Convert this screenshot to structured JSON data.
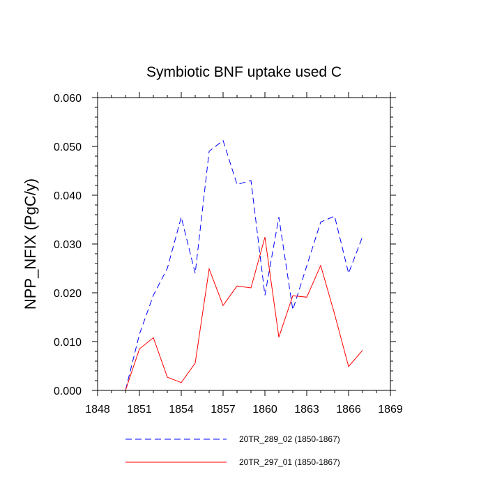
{
  "chart_data": {
    "type": "line",
    "title": "Symbiotic BNF uptake used C",
    "xlabel": "",
    "ylabel": "NPP_NFIX  (PgC/y)",
    "xlim": [
      1848,
      1869
    ],
    "ylim": [
      0.0,
      0.06
    ],
    "xticks": [
      1848,
      1851,
      1854,
      1857,
      1860,
      1863,
      1866,
      1869
    ],
    "xtick_labels": [
      "1848",
      "1851",
      "1854",
      "1857",
      "1860",
      "1863",
      "1866",
      "1869"
    ],
    "yticks": [
      0.0,
      0.01,
      0.02,
      0.03,
      0.04,
      0.05,
      0.06
    ],
    "ytick_labels": [
      "0.000",
      "0.010",
      "0.020",
      "0.030",
      "0.040",
      "0.050",
      "0.060"
    ],
    "grid": false,
    "legend_position": "bottom",
    "x": [
      1850,
      1851,
      1852,
      1853,
      1854,
      1855,
      1856,
      1857,
      1858,
      1859,
      1860,
      1861,
      1862,
      1863,
      1864,
      1865,
      1866,
      1867
    ],
    "series": [
      {
        "name": "20TR_289_02 (1850-1867)",
        "color": "#0000ff",
        "style": "dashed",
        "values": [
          0.0,
          0.0115,
          0.0195,
          0.025,
          0.0355,
          0.024,
          0.049,
          0.0512,
          0.0422,
          0.043,
          0.0195,
          0.0355,
          0.0165,
          0.0255,
          0.0345,
          0.0357,
          0.024,
          0.0315
        ]
      },
      {
        "name": "20TR_297_01 (1850-1867)",
        "color": "#ff0000",
        "style": "solid",
        "values": [
          0.0,
          0.0085,
          0.0108,
          0.0027,
          0.0016,
          0.0056,
          0.0249,
          0.0174,
          0.0214,
          0.021,
          0.0314,
          0.0109,
          0.0194,
          0.0191,
          0.0256,
          0.0156,
          0.0049,
          0.0082
        ]
      }
    ]
  }
}
